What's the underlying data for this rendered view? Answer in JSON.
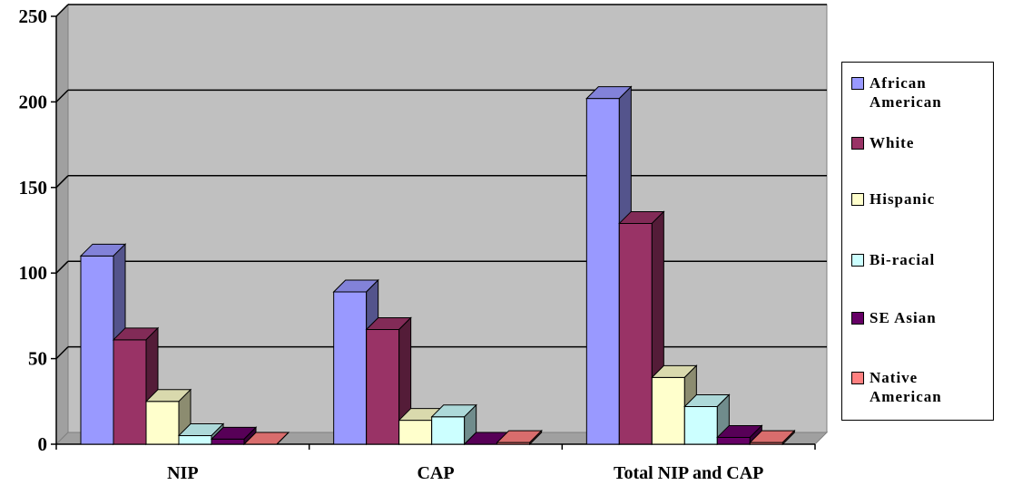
{
  "chart_data": {
    "type": "bar",
    "categories": [
      "NIP",
      "CAP",
      "Total NIP and CAP"
    ],
    "series": [
      {
        "name": "African American",
        "values": [
          110,
          89,
          202
        ],
        "color": "#9999FF"
      },
      {
        "name": "White",
        "values": [
          61,
          67,
          129
        ],
        "color": "#993366"
      },
      {
        "name": "Hispanic",
        "values": [
          25,
          14,
          39
        ],
        "color": "#FFFFCC"
      },
      {
        "name": "Bi-racial",
        "values": [
          5,
          16,
          22
        ],
        "color": "#CCFFFF"
      },
      {
        "name": "SE Asian",
        "values": [
          3,
          0,
          4
        ],
        "color": "#660066"
      },
      {
        "name": "Native American",
        "values": [
          0,
          1,
          1
        ],
        "color": "#FF8080"
      }
    ],
    "ylim": [
      0,
      250
    ],
    "yticks": [
      "0",
      "50",
      "100",
      "150",
      "200",
      "250"
    ],
    "grid": true,
    "legend_position": "right",
    "plot_background": "#C0C0C0"
  }
}
